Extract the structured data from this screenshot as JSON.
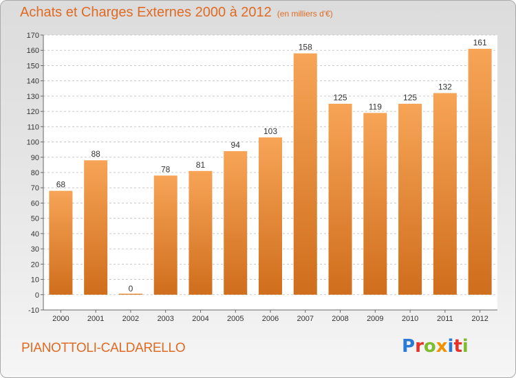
{
  "header": {
    "title": "Achats et Charges Externes 2000 à 2012",
    "subtitle": "(en milliers d'€)"
  },
  "footer": {
    "commune": "PIANOTTOLI-CALDARELLO",
    "logo": "Proxiti"
  },
  "logo_letters": [
    {
      "char": "P",
      "color": "#2a7bd5"
    },
    {
      "char": "r",
      "color": "#e5332a"
    },
    {
      "char": "o",
      "color": "#7dbb2f"
    },
    {
      "char": "x",
      "color": "#f39200"
    },
    {
      "char": "i",
      "color": "#2a7bd5"
    },
    {
      "char": "t",
      "color": "#e5332a"
    },
    {
      "char": "i",
      "color": "#7dbb2f"
    }
  ],
  "colors": {
    "accent": "#e06a22",
    "bar_top": "#f7a457",
    "bar_bottom": "#cf6e1c",
    "grid": "#c8c8c8"
  },
  "chart_data": {
    "type": "bar",
    "title": "Achats et Charges Externes 2000 à 2012",
    "subtitle": "(en milliers d'€)",
    "categories": [
      "2000",
      "2001",
      "2002",
      "2003",
      "2004",
      "2005",
      "2006",
      "2007",
      "2008",
      "2009",
      "2010",
      "2011",
      "2012"
    ],
    "values": [
      68,
      88,
      0,
      78,
      81,
      94,
      103,
      158,
      125,
      119,
      125,
      132,
      161
    ],
    "ylim": [
      -10,
      170
    ],
    "yticks": [
      -10,
      0,
      10,
      20,
      30,
      40,
      50,
      60,
      70,
      80,
      90,
      100,
      110,
      120,
      130,
      140,
      150,
      160,
      170
    ],
    "grid": true,
    "xlabel": "",
    "ylabel": ""
  }
}
